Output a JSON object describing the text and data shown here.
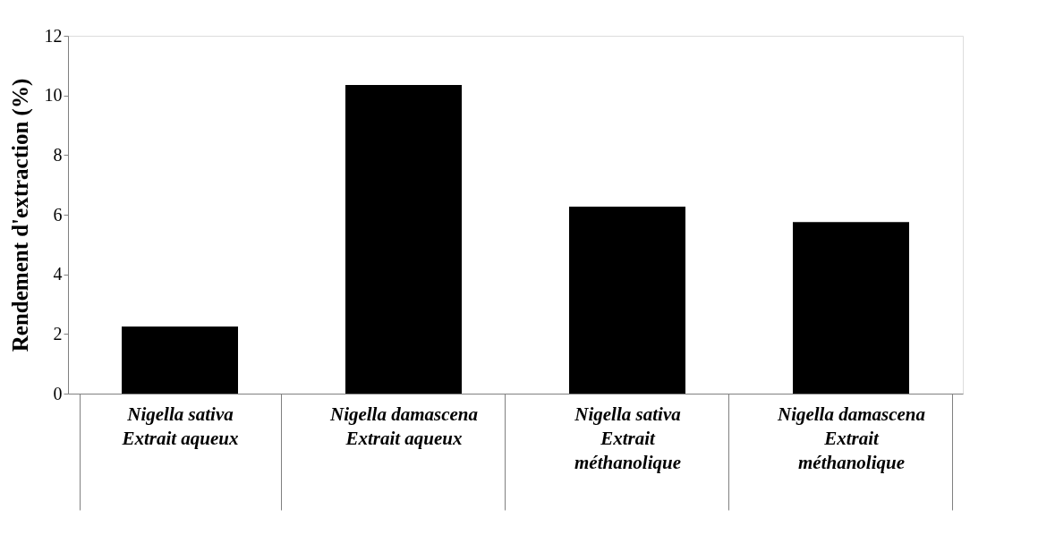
{
  "chart_data": {
    "type": "bar",
    "ylabel": "Rendement d'extraction (%)",
    "categories": [
      "Nigella sativa\nExtrait aqueux",
      "Nigella damascena\nExtrait aqueux",
      "Nigella sativa\nExtrait\nméthanolique",
      "Nigella damascena\nExtrait\nméthanolique"
    ],
    "values": [
      2.25,
      10.35,
      6.27,
      5.75
    ],
    "color": "#000000",
    "ylim": [
      0,
      12
    ],
    "yticks": [
      0,
      2,
      4,
      6,
      8,
      10,
      12
    ],
    "grid": false
  }
}
